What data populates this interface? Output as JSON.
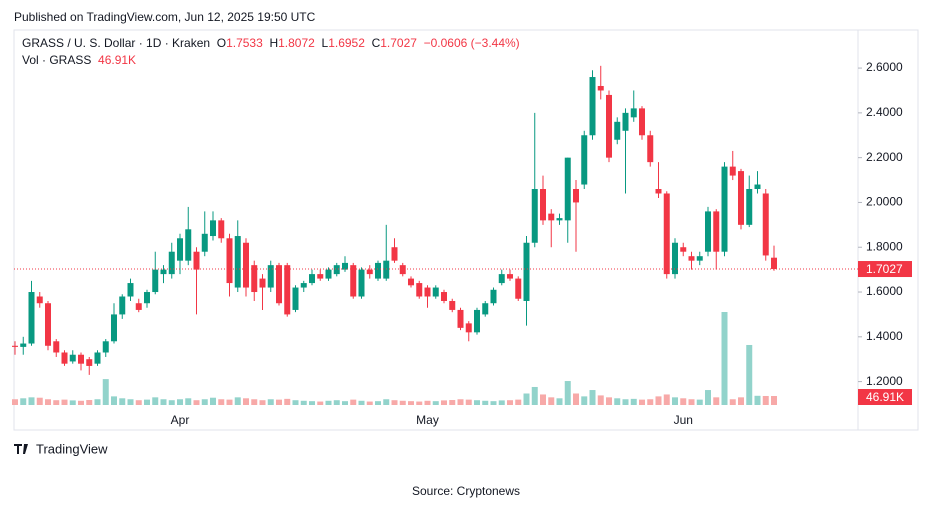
{
  "published": "Published on TradingView.com, Jun 12, 2025 19:50 UTC",
  "logo": "TradingView",
  "source": "Source: Cryptonews",
  "chart_data": {
    "type": "candlestick",
    "title": "GRASS / U. S. Dollar · 1D · Kraken",
    "ohlc_labels": [
      "O",
      "H",
      "L",
      "C"
    ],
    "change": "−0.0606 (−3.44%)",
    "up_color": "#089981",
    "down_color": "#f23645",
    "up_volume_color": "#92d3cb",
    "down_volume_color": "#f7a9a8",
    "grid": false,
    "ylim": [
      1.1,
      2.77
    ],
    "yticks": [
      {
        "value": 1.2,
        "label": "1.2000"
      },
      {
        "value": 1.4,
        "label": "1.4000"
      },
      {
        "value": 1.6,
        "label": "1.6000"
      },
      {
        "value": 1.8,
        "label": "1.8000"
      },
      {
        "value": 2.0,
        "label": "2.0000"
      },
      {
        "value": 2.2,
        "label": "2.2000"
      },
      {
        "value": 2.4,
        "label": "2.4000"
      },
      {
        "value": 2.6,
        "label": "2.6000"
      }
    ],
    "categories": [
      null,
      null,
      null,
      null,
      null,
      null,
      null,
      null,
      null,
      null,
      null,
      null,
      null,
      null,
      null,
      null,
      null,
      null,
      null,
      null,
      "Apr",
      null,
      null,
      null,
      null,
      null,
      null,
      null,
      null,
      null,
      null,
      null,
      null,
      null,
      null,
      null,
      null,
      null,
      null,
      null,
      null,
      null,
      null,
      null,
      null,
      null,
      null,
      null,
      null,
      null,
      "May",
      null,
      null,
      null,
      null,
      null,
      null,
      null,
      null,
      null,
      null,
      null,
      null,
      null,
      null,
      null,
      null,
      null,
      null,
      null,
      null,
      null,
      null,
      null,
      null,
      null,
      null,
      null,
      null,
      null,
      null,
      "Jun",
      null,
      null,
      null,
      null,
      null,
      null,
      null,
      null,
      null,
      null,
      null
    ],
    "open": [
      1.36,
      1.355,
      1.37,
      1.58,
      1.55,
      1.38,
      1.33,
      1.29,
      1.32,
      1.3,
      1.28,
      1.33,
      1.38,
      1.5,
      1.58,
      1.55,
      1.55,
      1.6,
      1.68,
      1.68,
      1.74,
      1.74,
      1.78,
      1.78,
      1.85,
      1.92,
      1.84,
      1.62,
      1.82,
      1.72,
      1.66,
      1.62,
      1.72,
      1.72,
      1.52,
      1.62,
      1.64,
      1.68,
      1.66,
      1.68,
      1.7,
      1.72,
      1.58,
      1.7,
      1.66,
      1.66,
      1.8,
      1.72,
      1.66,
      1.64,
      1.62,
      1.58,
      1.6,
      1.56,
      1.52,
      1.46,
      1.42,
      1.5,
      1.55,
      1.64,
      1.68,
      1.66,
      1.56,
      1.82,
      2.06,
      1.95,
      1.92,
      1.92,
      2.06,
      2.08,
      2.3,
      2.52,
      2.48,
      2.28,
      2.32,
      2.38,
      2.42,
      2.3,
      2.06,
      2.04,
      1.68,
      1.8,
      1.76,
      1.74,
      1.78,
      1.96,
      1.78,
      2.16,
      2.14,
      1.9,
      2.06,
      2.04,
      1.7533
    ],
    "high": [
      1.38,
      1.4,
      1.65,
      1.6,
      1.56,
      1.39,
      1.34,
      1.34,
      1.33,
      1.31,
      1.34,
      1.39,
      1.55,
      1.59,
      1.66,
      1.57,
      1.61,
      1.78,
      1.72,
      1.82,
      1.86,
      1.98,
      1.8,
      1.96,
      1.96,
      1.93,
      1.86,
      1.92,
      1.84,
      1.74,
      1.68,
      1.74,
      1.73,
      1.73,
      1.63,
      1.65,
      1.7,
      1.7,
      1.71,
      1.73,
      1.76,
      1.73,
      1.71,
      1.72,
      1.74,
      1.9,
      1.84,
      1.73,
      1.67,
      1.65,
      1.63,
      1.63,
      1.61,
      1.57,
      1.53,
      1.47,
      1.53,
      1.56,
      1.62,
      1.7,
      1.7,
      1.67,
      1.85,
      2.4,
      2.12,
      1.97,
      1.95,
      2.2,
      2.1,
      2.32,
      2.59,
      2.61,
      2.5,
      2.38,
      2.42,
      2.5,
      2.43,
      2.32,
      2.18,
      2.05,
      1.84,
      1.82,
      1.78,
      1.78,
      1.98,
      1.97,
      2.18,
      2.23,
      2.15,
      2.12,
      2.14,
      2.06,
      1.8072
    ],
    "low": [
      1.32,
      1.32,
      1.36,
      1.53,
      1.34,
      1.31,
      1.27,
      1.28,
      1.25,
      1.23,
      1.27,
      1.31,
      1.37,
      1.48,
      1.56,
      1.51,
      1.53,
      1.59,
      1.64,
      1.66,
      1.68,
      1.72,
      1.5,
      1.76,
      1.83,
      1.82,
      1.58,
      1.6,
      1.58,
      1.56,
      1.52,
      1.6,
      1.54,
      1.49,
      1.51,
      1.6,
      1.63,
      1.65,
      1.65,
      1.67,
      1.69,
      1.57,
      1.57,
      1.66,
      1.65,
      1.65,
      1.73,
      1.67,
      1.62,
      1.57,
      1.53,
      1.57,
      1.55,
      1.51,
      1.43,
      1.38,
      1.41,
      1.49,
      1.54,
      1.63,
      1.65,
      1.56,
      1.45,
      1.8,
      1.9,
      1.8,
      1.9,
      1.82,
      1.78,
      2.06,
      2.28,
      2.46,
      2.18,
      2.26,
      2.04,
      2.36,
      2.28,
      2.16,
      2.02,
      1.66,
      1.66,
      1.76,
      1.7,
      1.72,
      1.76,
      1.7,
      1.76,
      2.1,
      1.88,
      1.89,
      2.04,
      1.74,
      1.6952
    ],
    "close": [
      1.355,
      1.37,
      1.6,
      1.55,
      1.36,
      1.33,
      1.28,
      1.32,
      1.28,
      1.27,
      1.33,
      1.38,
      1.5,
      1.58,
      1.64,
      1.52,
      1.6,
      1.7,
      1.7,
      1.78,
      1.84,
      1.88,
      1.7,
      1.86,
      1.92,
      1.84,
      1.64,
      1.85,
      1.62,
      1.6,
      1.62,
      1.72,
      1.55,
      1.5,
      1.62,
      1.64,
      1.68,
      1.66,
      1.7,
      1.72,
      1.73,
      1.58,
      1.7,
      1.68,
      1.73,
      1.74,
      1.74,
      1.68,
      1.63,
      1.58,
      1.58,
      1.62,
      1.56,
      1.52,
      1.44,
      1.42,
      1.52,
      1.55,
      1.61,
      1.68,
      1.66,
      1.57,
      1.82,
      2.06,
      1.92,
      1.92,
      1.93,
      2.2,
      2.0,
      2.3,
      2.56,
      2.5,
      2.2,
      2.36,
      2.4,
      2.42,
      2.3,
      2.18,
      2.04,
      1.68,
      1.82,
      1.78,
      1.74,
      1.76,
      1.96,
      1.78,
      2.16,
      2.12,
      1.9,
      2.06,
      2.08,
      1.7633,
      1.7027
    ],
    "volume": {
      "name": "Vol · GRASS",
      "last_label": "46.91K",
      "values": [
        30000,
        35000,
        40000,
        38000,
        30000,
        25000,
        28000,
        24000,
        22000,
        26000,
        30000,
        135000,
        45000,
        35000,
        30000,
        25000,
        28000,
        40000,
        30000,
        25000,
        30000,
        35000,
        25000,
        30000,
        38000,
        30000,
        28000,
        40000,
        35000,
        30000,
        25000,
        30000,
        28000,
        32000,
        25000,
        22000,
        20000,
        18000,
        22000,
        25000,
        20000,
        28000,
        22000,
        18000,
        20000,
        30000,
        25000,
        22000,
        20000,
        18000,
        22000,
        20000,
        24000,
        26000,
        30000,
        28000,
        25000,
        22000,
        20000,
        24000,
        25000,
        28000,
        60000,
        94000,
        55000,
        40000,
        35000,
        125000,
        60000,
        45000,
        78000,
        50000,
        40000,
        35000,
        30000,
        32000,
        28000,
        30000,
        45000,
        55000,
        40000,
        35000,
        30000,
        28000,
        78000,
        40000,
        485000,
        30000,
        40000,
        313000,
        48000,
        47000,
        46910
      ]
    }
  }
}
